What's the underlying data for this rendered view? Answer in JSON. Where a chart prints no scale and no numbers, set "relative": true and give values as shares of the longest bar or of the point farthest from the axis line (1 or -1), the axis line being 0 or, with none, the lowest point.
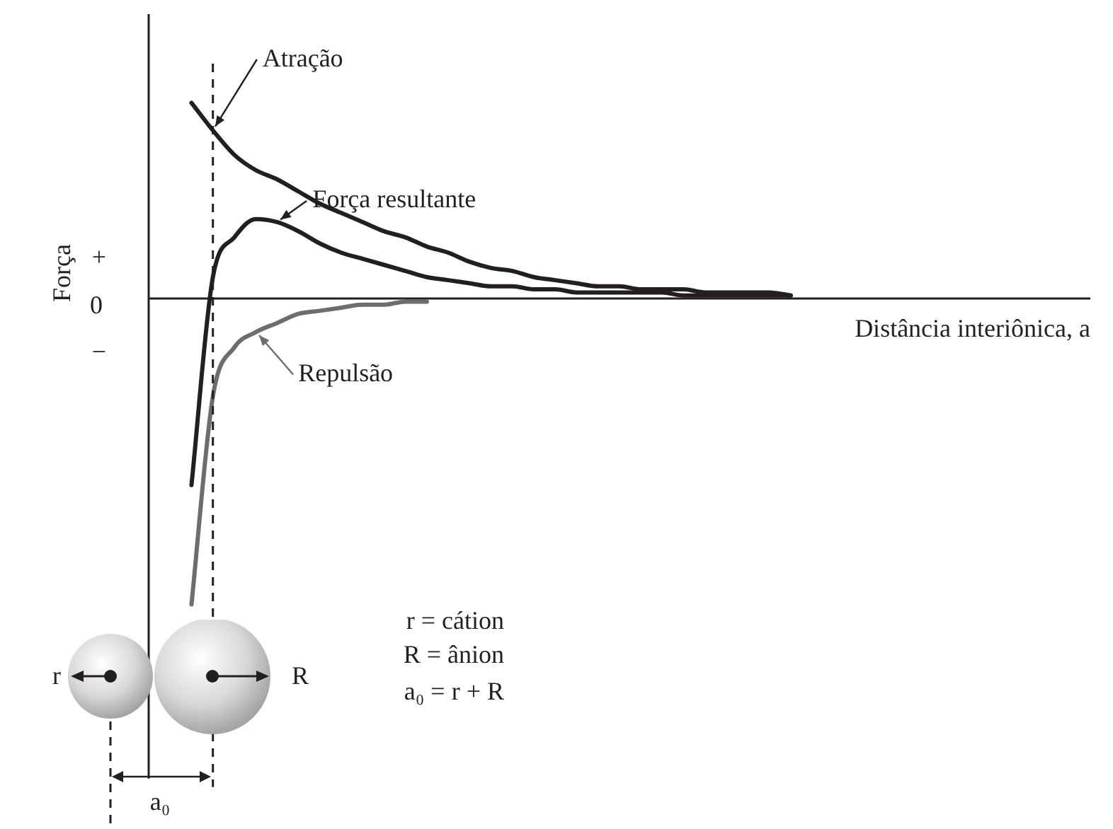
{
  "chart_data": {
    "type": "line",
    "relative": true,
    "xlabel": "Distância interiônica, a",
    "ylabel": "Força",
    "categories": [
      null,
      null,
      null,
      null,
      null,
      null,
      null,
      null,
      null,
      null,
      null,
      null,
      null,
      null,
      null,
      null,
      null,
      null,
      null,
      null,
      null,
      null,
      null,
      null,
      null,
      null,
      null,
      null,
      null,
      null,
      null,
      null,
      null,
      null,
      null,
      null,
      null,
      null,
      null,
      null,
      null,
      null,
      null,
      null,
      null
    ],
    "series": [
      {
        "name": "Atração",
        "color": "#231f20",
        "values": [
          null,
          null,
          0.64,
          0.55,
          0.47,
          0.42,
          0.39,
          0.35,
          0.31,
          0.28,
          0.25,
          0.22,
          0.2,
          0.17,
          0.15,
          0.12,
          0.1,
          0.09,
          0.07,
          0.06,
          0.05,
          0.04,
          0.04,
          0.03,
          0.03,
          0.03,
          0.02,
          0.02,
          0.02,
          0.02,
          0.01,
          null,
          null,
          null,
          null,
          null,
          null,
          null,
          null,
          null,
          null,
          null,
          null,
          null,
          null
        ]
      },
      {
        "name": "Força resultante",
        "color": "#231f20",
        "values": [
          null,
          null,
          -0.61,
          0.07,
          0.2,
          0.26,
          0.25,
          0.22,
          0.18,
          0.15,
          0.13,
          0.11,
          0.09,
          0.07,
          0.06,
          0.05,
          0.04,
          0.04,
          0.03,
          0.03,
          0.02,
          0.02,
          0.02,
          0.02,
          0.02,
          0.01,
          0.01,
          0.01,
          0.01,
          0.01,
          0.01,
          null,
          null,
          null,
          null,
          null,
          null,
          null,
          null,
          null,
          null,
          null,
          null,
          null,
          null
        ]
      },
      {
        "name": "Repulsão",
        "color": "#6d6d6d",
        "values": [
          null,
          null,
          -1,
          -0.32,
          -0.16,
          -0.11,
          -0.08,
          -0.05,
          -0.04,
          -0.03,
          -0.02,
          -0.02,
          -0.01,
          -0.01,
          null,
          null,
          null,
          null,
          null,
          null,
          null,
          null,
          null,
          null,
          null,
          null,
          null,
          null,
          null,
          null,
          null,
          null,
          null,
          null,
          null,
          null,
          null,
          null,
          null,
          null,
          null,
          null,
          null,
          null,
          null
        ]
      }
    ],
    "annotations": [
      "+",
      "0",
      "−",
      "r",
      "R",
      "r = cátion",
      "R = ânion",
      "a₀ = r + R",
      "a₀"
    ]
  }
}
